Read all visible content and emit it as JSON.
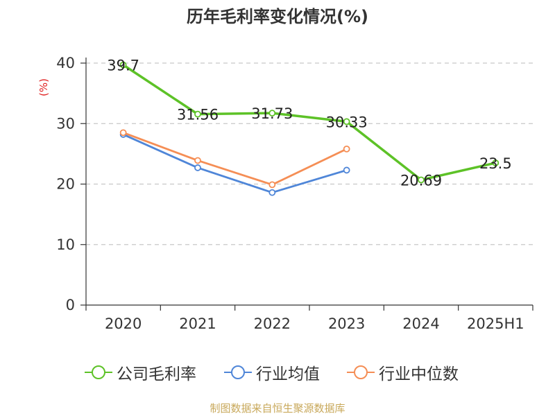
{
  "title": "历年毛利率变化情况(%)",
  "footer": "制图数据来自恒生聚源数据库",
  "chart_data": {
    "type": "line",
    "title": "历年毛利率变化情况(%)",
    "ylabel": "(%)",
    "xlabel": "",
    "categories": [
      "2020",
      "2021",
      "2022",
      "2023",
      "2024",
      "2025H1"
    ],
    "ylim": [
      0,
      40
    ],
    "yticks": [
      0,
      10,
      20,
      30,
      40
    ],
    "grid": true,
    "legend_position": "bottom",
    "series": [
      {
        "name": "公司毛利率",
        "color": "#5dc227",
        "values": [
          39.7,
          31.56,
          31.73,
          30.33,
          20.69,
          23.5
        ],
        "labels": [
          "39.7",
          "31.56",
          "31.73",
          "30.33",
          "20.69",
          "23.5"
        ]
      },
      {
        "name": "行业均值",
        "color": "#4f86d8",
        "values": [
          28.2,
          22.7,
          18.6,
          22.3,
          null,
          null
        ]
      },
      {
        "name": "行业中位数",
        "color": "#f58e55",
        "values": [
          28.5,
          23.9,
          19.9,
          25.8,
          null,
          null
        ]
      }
    ]
  }
}
